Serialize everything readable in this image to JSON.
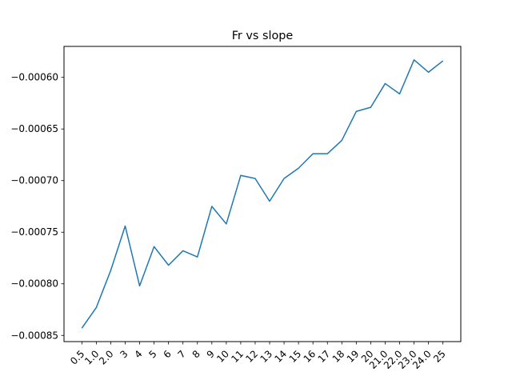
{
  "chart_data": {
    "type": "line",
    "title": "Fr vs slope",
    "xlabel": "",
    "ylabel": "",
    "categories": [
      "0.5",
      "1.0",
      "2.0",
      "3",
      "4",
      "5",
      "6",
      "7",
      "8",
      "9",
      "10",
      "11",
      "12",
      "13",
      "14",
      "15",
      "16",
      "17",
      "18",
      "19",
      "20",
      "21.0",
      "22.0",
      "23.0",
      "24.0",
      "25"
    ],
    "series": [
      {
        "values": [
          -0.000843,
          -0.000823,
          -0.000787,
          -0.000744,
          -0.000802,
          -0.000764,
          -0.000782,
          -0.000768,
          -0.000774,
          -0.000725,
          -0.000742,
          -0.000695,
          -0.000698,
          -0.00072,
          -0.000698,
          -0.000688,
          -0.000674,
          -0.000674,
          -0.000661,
          -0.000633,
          -0.000629,
          -0.000606,
          -0.000616,
          -0.000583,
          -0.000595,
          -0.000584
        ],
        "color": "#1f77b4"
      }
    ],
    "yticks": [
      -0.00085,
      -0.0008,
      -0.00075,
      -0.0007,
      -0.00065,
      -0.0006
    ],
    "ytick_labels": [
      "−0.00085",
      "−0.00080",
      "−0.00075",
      "−0.00070",
      "−0.00065",
      "−0.00060"
    ],
    "ylim": [
      -0.000856,
      -0.00057
    ],
    "grid": false,
    "legend": "none"
  }
}
